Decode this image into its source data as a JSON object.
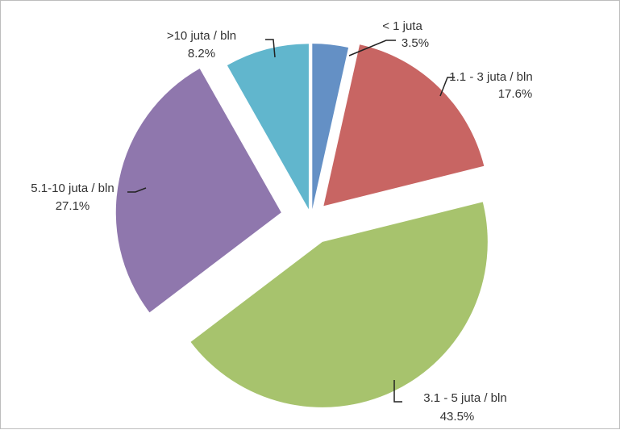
{
  "chart_data": {
    "type": "pie",
    "exploded": true,
    "start_angle_deg": 90,
    "direction": "clockwise",
    "slices": [
      {
        "name": "< 1 juta",
        "value": 3.5,
        "label": "3.5%",
        "color": "#4f81bd"
      },
      {
        "name": "1.1 - 3 juta / bln",
        "value": 17.6,
        "label": "17.6%",
        "color": "#c0504d"
      },
      {
        "name": "3.1 - 5 juta / bln",
        "value": 43.5,
        "label": "43.5%",
        "color": "#9bbb59"
      },
      {
        "name": "5.1-10 juta / bln",
        "value": 27.1,
        "label": "27.1%",
        "color": "#8064a2"
      },
      {
        "name": ">10 juta / bln",
        "value": 8.2,
        "label": "8.2%",
        "color": "#4bacc6"
      }
    ]
  }
}
